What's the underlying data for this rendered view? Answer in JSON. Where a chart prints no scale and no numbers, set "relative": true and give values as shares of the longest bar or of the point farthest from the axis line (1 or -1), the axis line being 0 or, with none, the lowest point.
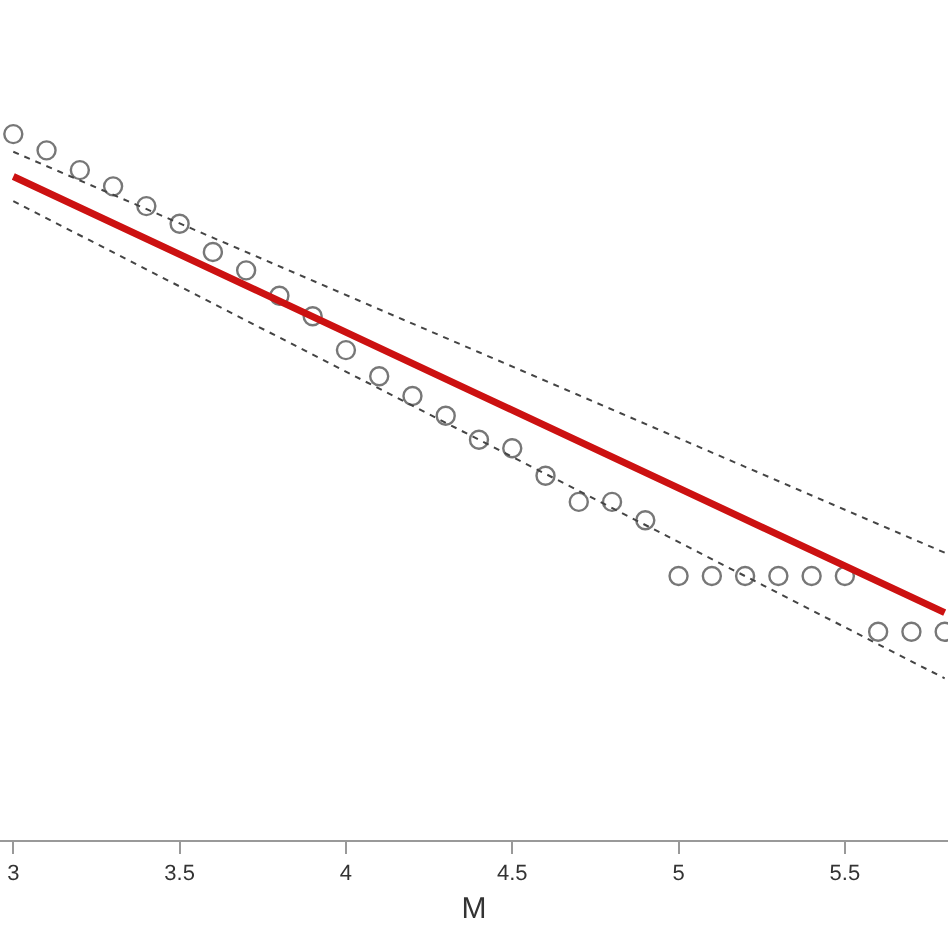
{
  "chart_data": {
    "type": "scatter",
    "xlabel": "M",
    "relative": true,
    "xlim": [
      2.96,
      5.81
    ],
    "xticks": [
      3,
      3.5,
      4,
      4.5,
      5,
      5.5
    ],
    "x": [
      3.0,
      3.1,
      3.2,
      3.3,
      3.4,
      3.5,
      3.6,
      3.7,
      3.8,
      3.9,
      4.0,
      4.1,
      4.2,
      4.3,
      4.4,
      4.5,
      4.6,
      4.7,
      4.8,
      4.9,
      5.0,
      5.1,
      5.2,
      5.3,
      5.4,
      5.5,
      5.6,
      5.7,
      5.8
    ],
    "series": [
      {
        "marker": "circle",
        "color": "#777777",
        "values": [
          1.0,
          0.977,
          0.949,
          0.926,
          0.898,
          0.873,
          0.833,
          0.807,
          0.771,
          0.742,
          0.694,
          0.657,
          0.629,
          0.601,
          0.567,
          0.555,
          0.516,
          0.479,
          0.479,
          0.453,
          0.374,
          0.374,
          0.374,
          0.374,
          0.374,
          0.374,
          0.295,
          0.295,
          0.295
        ]
      },
      {
        "type": "line",
        "marker": "none",
        "line_style": "solid",
        "color": "#cc1111",
        "x": [
          3.0,
          4.4,
          5.8
        ],
        "values": [
          0.94,
          0.631,
          0.322
        ]
      },
      {
        "type": "line",
        "marker": "none",
        "line_style": "dotted",
        "color": "#444444",
        "x": [
          3.0,
          4.4,
          5.8
        ],
        "values": [
          0.975,
          0.691,
          0.407
        ]
      },
      {
        "type": "line",
        "marker": "none",
        "line_style": "dotted",
        "color": "#444444",
        "x": [
          3.0,
          4.4,
          5.8
        ],
        "values": [
          0.905,
          0.567,
          0.229
        ]
      }
    ]
  }
}
